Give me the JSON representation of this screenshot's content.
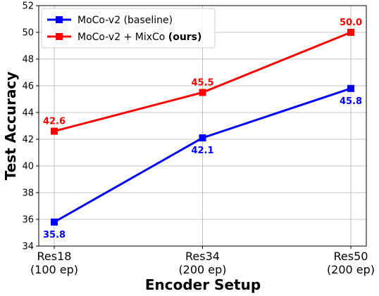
{
  "chart_data": {
    "type": "line",
    "xlabel": "Encoder Setup",
    "ylabel": "Test Accuracy",
    "categories": [
      "Res18\n(100 ep)",
      "Res34\n(200 ep)",
      "Res50\n(200 ep)"
    ],
    "series": [
      {
        "name": "MoCo-v2 (baseline)",
        "color": "#0000ff",
        "values": [
          35.8,
          42.1,
          45.8
        ],
        "value_labels": [
          "35.8",
          "42.1",
          "45.8"
        ],
        "label_position": "below"
      },
      {
        "name": "MoCo-v2 + MixCo (ours)",
        "color": "#ff0000",
        "values": [
          42.6,
          45.5,
          50.0
        ],
        "value_labels": [
          "42.6",
          "45.5",
          "50.0"
        ],
        "label_position": "above"
      }
    ],
    "ylim": [
      34,
      52
    ],
    "yticks": [
      34,
      36,
      38,
      40,
      42,
      44,
      46,
      48,
      50,
      52
    ],
    "grid": true,
    "legend": "upper left"
  }
}
